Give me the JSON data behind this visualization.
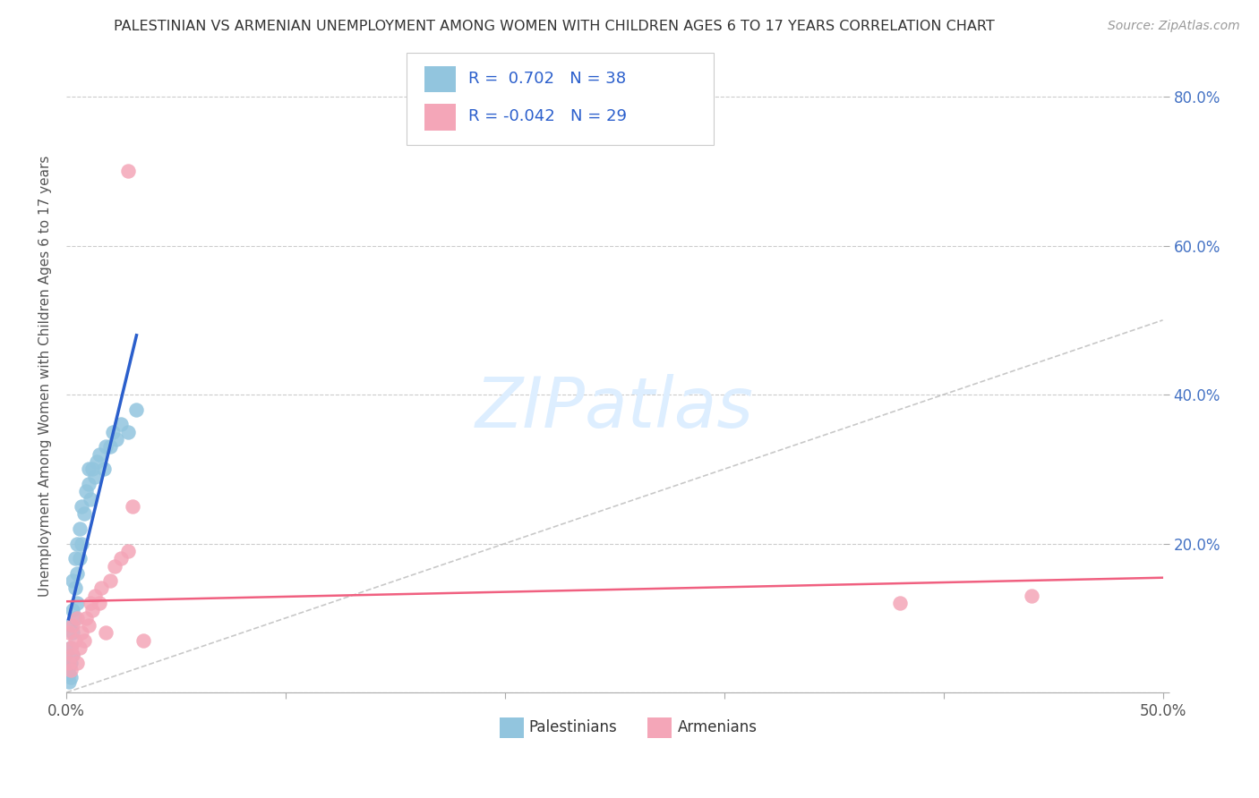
{
  "title": "PALESTINIAN VS ARMENIAN UNEMPLOYMENT AMONG WOMEN WITH CHILDREN AGES 6 TO 17 YEARS CORRELATION CHART",
  "source": "Source: ZipAtlas.com",
  "ylabel": "Unemployment Among Women with Children Ages 6 to 17 years",
  "xlim": [
    0.0,
    0.5
  ],
  "ylim": [
    -0.02,
    0.85
  ],
  "plot_ylim": [
    0.0,
    0.85
  ],
  "xticks": [
    0.0,
    0.1,
    0.2,
    0.3,
    0.4,
    0.5
  ],
  "yticks": [
    0.0,
    0.2,
    0.4,
    0.6,
    0.8
  ],
  "legend_r_pal": "0.702",
  "legend_n_pal": "38",
  "legend_r_arm": "-0.042",
  "legend_n_arm": "29",
  "pal_color": "#92c5de",
  "arm_color": "#f4a6b8",
  "pal_line_color": "#2b5fcc",
  "arm_line_color": "#f06080",
  "diag_color": "#bbbbbb",
  "watermark_color": "#ddeeff",
  "palestinians_x": [
    0.001,
    0.001,
    0.001,
    0.002,
    0.002,
    0.002,
    0.002,
    0.003,
    0.003,
    0.003,
    0.003,
    0.004,
    0.004,
    0.004,
    0.005,
    0.005,
    0.005,
    0.006,
    0.006,
    0.007,
    0.007,
    0.008,
    0.009,
    0.01,
    0.01,
    0.011,
    0.012,
    0.013,
    0.014,
    0.015,
    0.017,
    0.018,
    0.02,
    0.021,
    0.023,
    0.025,
    0.028,
    0.032
  ],
  "palestinians_y": [
    0.015,
    0.025,
    0.035,
    0.02,
    0.04,
    0.06,
    0.09,
    0.05,
    0.08,
    0.11,
    0.15,
    0.1,
    0.14,
    0.18,
    0.12,
    0.16,
    0.2,
    0.18,
    0.22,
    0.2,
    0.25,
    0.24,
    0.27,
    0.28,
    0.3,
    0.26,
    0.3,
    0.29,
    0.31,
    0.32,
    0.3,
    0.33,
    0.33,
    0.35,
    0.34,
    0.36,
    0.35,
    0.38
  ],
  "armenians_x": [
    0.001,
    0.001,
    0.002,
    0.002,
    0.003,
    0.003,
    0.004,
    0.005,
    0.005,
    0.006,
    0.007,
    0.008,
    0.009,
    0.01,
    0.011,
    0.012,
    0.013,
    0.015,
    0.016,
    0.018,
    0.02,
    0.022,
    0.025,
    0.028,
    0.035,
    0.03,
    0.028,
    0.38,
    0.44
  ],
  "armenians_y": [
    0.04,
    0.08,
    0.03,
    0.06,
    0.05,
    0.09,
    0.07,
    0.04,
    0.1,
    0.06,
    0.08,
    0.07,
    0.1,
    0.09,
    0.12,
    0.11,
    0.13,
    0.12,
    0.14,
    0.08,
    0.15,
    0.17,
    0.18,
    0.19,
    0.07,
    0.25,
    0.7,
    0.12,
    0.13
  ]
}
